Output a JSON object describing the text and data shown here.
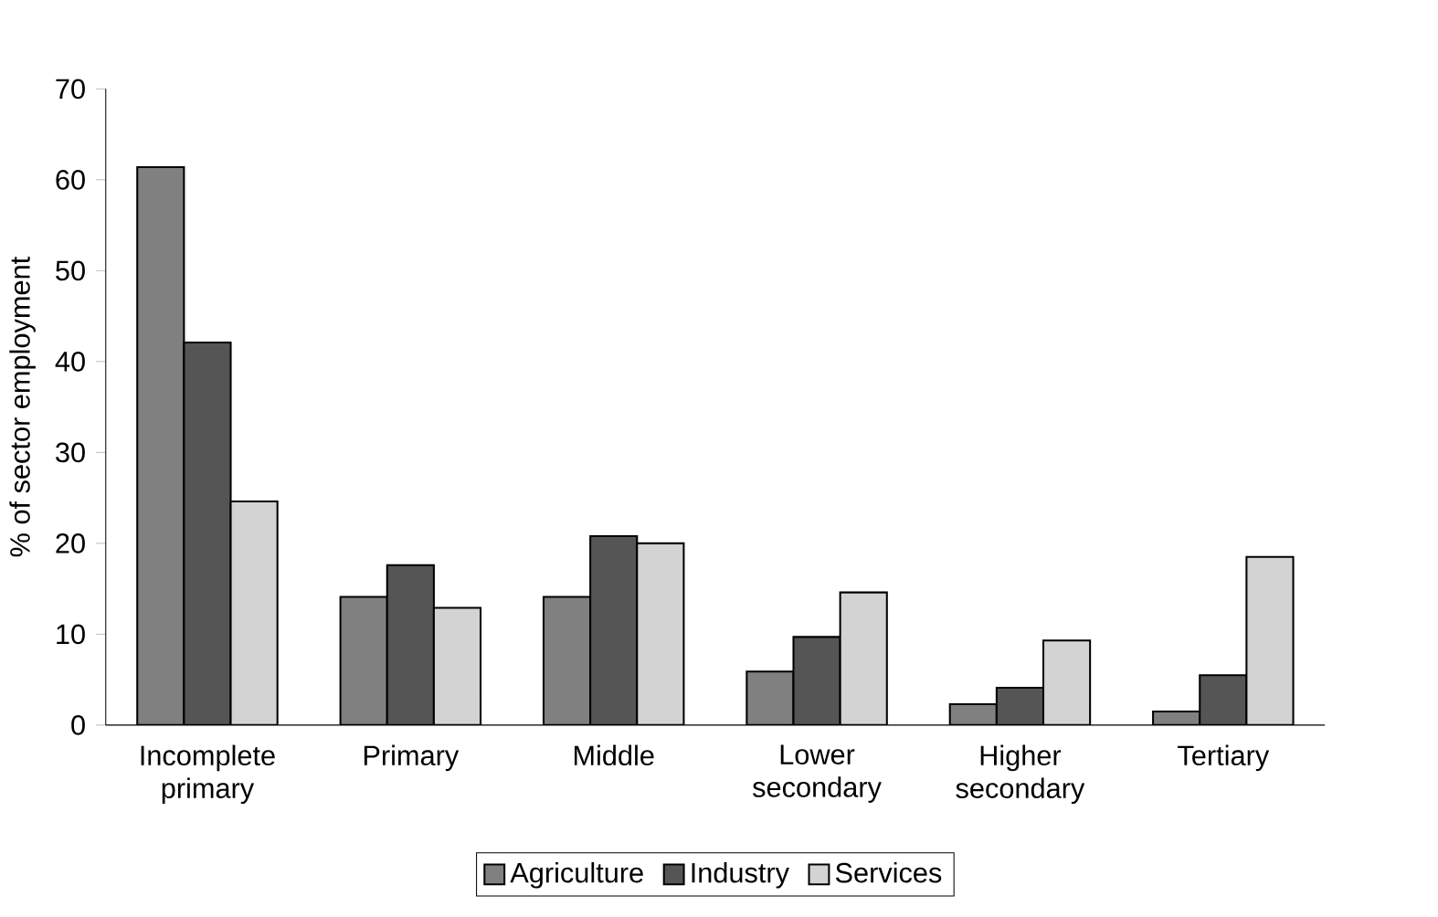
{
  "chart_data": {
    "type": "bar",
    "ylabel": "% of sector employment",
    "categories": [
      "Incomplete primary",
      "Primary",
      "Middle",
      "Lower secondary",
      "Higher secondary",
      "Tertiary"
    ],
    "series": [
      {
        "name": "Agriculture",
        "color": "#808080",
        "values": [
          61.4,
          14.1,
          14.1,
          5.9,
          2.3,
          1.5
        ]
      },
      {
        "name": "Industry",
        "color": "#555555",
        "values": [
          42.1,
          17.6,
          20.8,
          9.7,
          4.1,
          5.5
        ]
      },
      {
        "name": "Services",
        "color": "#d3d3d3",
        "values": [
          24.6,
          12.9,
          20.0,
          14.6,
          9.3,
          18.5
        ]
      }
    ],
    "ylim": [
      0,
      70
    ],
    "yticks": [
      0,
      10,
      20,
      30,
      40,
      50,
      60,
      70
    ],
    "grid": false,
    "legend": "bottom"
  }
}
